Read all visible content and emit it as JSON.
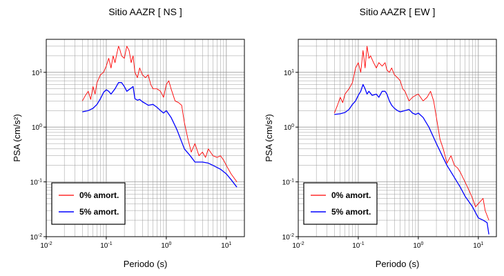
{
  "chart_data": [
    {
      "type": "line",
      "title": "Sitio AAZR [ NS ]",
      "xlabel": "Periodo (s)",
      "ylabel": "PSA (cm/s²)",
      "x_scale": "log",
      "y_scale": "log",
      "xlim": [
        0.01,
        20
      ],
      "ylim": [
        0.01,
        40
      ],
      "grid": true,
      "legend_position": "bottom-left",
      "x_ticks": [
        {
          "base": "10",
          "exp": "-2"
        },
        {
          "base": "10",
          "exp": "-1"
        },
        {
          "base": "10",
          "exp": "0"
        },
        {
          "base": "10",
          "exp": "1"
        }
      ],
      "y_ticks": [
        {
          "base": "10",
          "exp": "-2"
        },
        {
          "base": "10",
          "exp": "-1"
        },
        {
          "base": "10",
          "exp": "0"
        },
        {
          "base": "10",
          "exp": "1"
        }
      ],
      "series": [
        {
          "name": "0% amort.",
          "color": "#ff0000",
          "x": [
            0.04,
            0.045,
            0.05,
            0.055,
            0.06,
            0.065,
            0.07,
            0.08,
            0.09,
            0.1,
            0.11,
            0.12,
            0.13,
            0.14,
            0.15,
            0.16,
            0.17,
            0.18,
            0.2,
            0.22,
            0.24,
            0.26,
            0.28,
            0.3,
            0.33,
            0.36,
            0.4,
            0.45,
            0.5,
            0.55,
            0.6,
            0.7,
            0.8,
            0.9,
            1.0,
            1.1,
            1.2,
            1.4,
            1.6,
            1.8,
            2.0,
            2.3,
            2.6,
            3.0,
            3.5,
            4.0,
            4.5,
            5.0,
            6.0,
            7.0,
            8.0,
            9.0,
            10.0,
            12.0,
            15.0
          ],
          "y": [
            3.0,
            3.8,
            4.5,
            3.2,
            5.5,
            4.0,
            6.5,
            9.0,
            10.0,
            13.0,
            18.0,
            12.0,
            20.0,
            15.0,
            22.0,
            30.0,
            25.0,
            20.0,
            18.0,
            30.0,
            25.0,
            15.0,
            20.0,
            10.0,
            8.0,
            12.0,
            9.0,
            8.0,
            9.0,
            6.0,
            5.0,
            5.0,
            4.5,
            3.5,
            6.0,
            7.0,
            5.0,
            3.0,
            2.8,
            2.5,
            1.2,
            0.6,
            0.35,
            0.5,
            0.3,
            0.35,
            0.28,
            0.4,
            0.3,
            0.28,
            0.3,
            0.25,
            0.2,
            0.14,
            0.1
          ]
        },
        {
          "name": "5% amort.",
          "color": "#0000ff",
          "x": [
            0.04,
            0.05,
            0.06,
            0.07,
            0.08,
            0.09,
            0.1,
            0.11,
            0.12,
            0.14,
            0.16,
            0.18,
            0.2,
            0.22,
            0.25,
            0.28,
            0.3,
            0.33,
            0.36,
            0.4,
            0.45,
            0.5,
            0.6,
            0.7,
            0.8,
            0.9,
            1.0,
            1.2,
            1.5,
            2.0,
            2.5,
            3.0,
            4.0,
            5.0,
            6.0,
            8.0,
            10.0,
            12.0,
            15.0
          ],
          "y": [
            1.9,
            2.0,
            2.2,
            2.6,
            3.3,
            4.3,
            4.8,
            4.5,
            4.0,
            5.0,
            6.5,
            6.5,
            5.5,
            4.5,
            5.0,
            5.5,
            3.3,
            3.1,
            3.2,
            2.9,
            2.7,
            2.5,
            2.6,
            2.3,
            2.0,
            1.8,
            2.0,
            1.5,
            0.9,
            0.4,
            0.3,
            0.23,
            0.23,
            0.22,
            0.2,
            0.17,
            0.14,
            0.11,
            0.08
          ]
        }
      ]
    },
    {
      "type": "line",
      "title": "Sitio AAZR [ EW ]",
      "xlabel": "Periodo (s)",
      "ylabel": "PSA (cm/s²)",
      "x_scale": "log",
      "y_scale": "log",
      "xlim": [
        0.01,
        20
      ],
      "ylim": [
        0.01,
        40
      ],
      "grid": true,
      "legend_position": "bottom-left",
      "x_ticks": [
        {
          "base": "10",
          "exp": "-2"
        },
        {
          "base": "10",
          "exp": "-1"
        },
        {
          "base": "10",
          "exp": "0"
        },
        {
          "base": "10",
          "exp": "1"
        }
      ],
      "y_ticks": [
        {
          "base": "10",
          "exp": "-2"
        },
        {
          "base": "10",
          "exp": "-1"
        },
        {
          "base": "10",
          "exp": "0"
        },
        {
          "base": "10",
          "exp": "1"
        }
      ],
      "series": [
        {
          "name": "0% amort.",
          "color": "#ff0000",
          "x": [
            0.04,
            0.045,
            0.05,
            0.055,
            0.06,
            0.065,
            0.07,
            0.08,
            0.09,
            0.1,
            0.11,
            0.12,
            0.13,
            0.14,
            0.15,
            0.16,
            0.18,
            0.2,
            0.22,
            0.25,
            0.28,
            0.3,
            0.33,
            0.36,
            0.4,
            0.45,
            0.5,
            0.55,
            0.6,
            0.7,
            0.8,
            0.9,
            1.0,
            1.2,
            1.4,
            1.6,
            1.8,
            2.0,
            2.3,
            2.6,
            3.0,
            3.5,
            4.0,
            4.5,
            5.0,
            6.0,
            7.0,
            8.0,
            9.0,
            10.0,
            12.0,
            13.0,
            15.0
          ],
          "y": [
            1.8,
            2.5,
            3.5,
            2.8,
            4.0,
            4.5,
            5.0,
            6.5,
            12.0,
            15.0,
            10.0,
            25.0,
            12.0,
            30.0,
            18.0,
            20.0,
            15.0,
            12.0,
            15.0,
            13.0,
            15.0,
            11.0,
            10.0,
            12.0,
            9.0,
            8.0,
            7.0,
            5.0,
            4.5,
            3.0,
            3.5,
            3.8,
            4.0,
            3.0,
            3.5,
            4.5,
            3.0,
            1.5,
            0.6,
            0.4,
            0.22,
            0.3,
            0.2,
            0.18,
            0.15,
            0.1,
            0.07,
            0.05,
            0.035,
            0.04,
            0.05,
            0.03,
            0.02
          ]
        },
        {
          "name": "5% amort.",
          "color": "#0000ff",
          "x": [
            0.04,
            0.05,
            0.06,
            0.07,
            0.08,
            0.09,
            0.1,
            0.11,
            0.12,
            0.13,
            0.14,
            0.15,
            0.17,
            0.2,
            0.22,
            0.25,
            0.28,
            0.3,
            0.33,
            0.36,
            0.4,
            0.45,
            0.5,
            0.6,
            0.7,
            0.8,
            0.9,
            1.0,
            1.2,
            1.5,
            2.0,
            2.5,
            3.0,
            4.0,
            5.0,
            6.0,
            8.0,
            10.0,
            12.0,
            14.0,
            15.0
          ],
          "y": [
            1.7,
            1.75,
            1.85,
            2.1,
            2.6,
            3.0,
            3.8,
            4.5,
            6.0,
            5.0,
            4.0,
            4.5,
            3.8,
            4.0,
            3.5,
            4.5,
            4.5,
            4.0,
            3.0,
            2.5,
            2.2,
            2.0,
            1.9,
            2.0,
            2.1,
            1.8,
            1.7,
            1.8,
            1.5,
            1.0,
            0.5,
            0.3,
            0.2,
            0.12,
            0.08,
            0.055,
            0.035,
            0.022,
            0.02,
            0.018,
            0.011
          ]
        }
      ]
    }
  ]
}
